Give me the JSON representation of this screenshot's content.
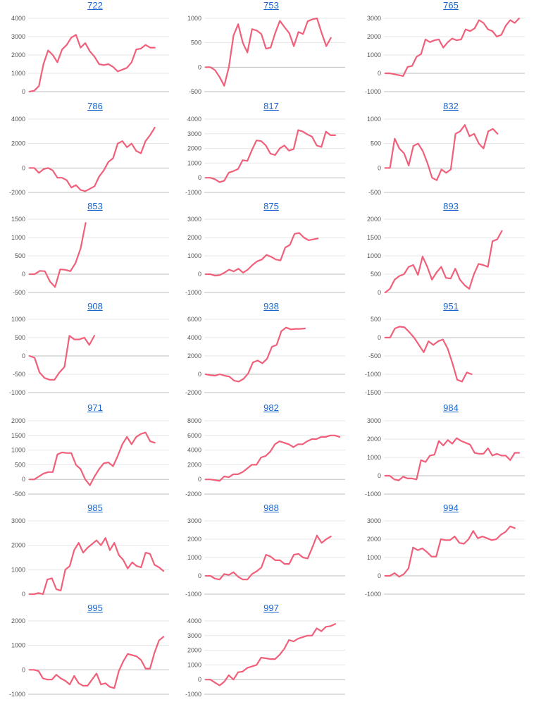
{
  "style": {
    "line_color": "#f0607a",
    "grid_color": "#e6e6e6",
    "zero_color": "#bdbdbd",
    "title_color": "#1a66cc",
    "tick_color": "#555555"
  },
  "chart_data": [
    {
      "type": "line",
      "title": "722",
      "ylim": [
        0,
        4000
      ],
      "yticks": [
        0,
        1000,
        2000,
        3000,
        4000
      ],
      "series": [
        {
          "values": [
            0,
            50,
            300,
            1500,
            2250,
            2000,
            1600,
            2300,
            2550,
            2950,
            3100,
            2400,
            2650,
            2200,
            1900,
            1500,
            1450,
            1500,
            1350,
            1100,
            1200,
            1300,
            1600,
            2300,
            2350,
            2550,
            2400,
            2400
          ]
        }
      ]
    },
    {
      "type": "line",
      "title": "753",
      "ylim": [
        -500,
        1000
      ],
      "yticks": [
        -500,
        0,
        500,
        1000
      ],
      "series": [
        {
          "values": [
            0,
            0,
            -60,
            -200,
            -380,
            0,
            650,
            880,
            500,
            300,
            780,
            750,
            680,
            380,
            400,
            700,
            950,
            820,
            700,
            430,
            720,
            680,
            940,
            980,
            1000,
            700,
            430,
            600
          ]
        }
      ]
    },
    {
      "type": "line",
      "title": "765",
      "ylim": [
        -1000,
        3000
      ],
      "yticks": [
        -1000,
        0,
        1000,
        2000,
        3000
      ],
      "series": [
        {
          "values": [
            0,
            0,
            -50,
            -100,
            -150,
            350,
            400,
            900,
            1050,
            1850,
            1700,
            1800,
            1850,
            1400,
            1700,
            1900,
            1800,
            1850,
            2400,
            2300,
            2450,
            2900,
            2750,
            2400,
            2300,
            2000,
            2100,
            2600,
            2900,
            2750,
            3000
          ]
        }
      ]
    },
    {
      "type": "line",
      "title": "786",
      "ylim": [
        -2000,
        4000
      ],
      "yticks": [
        -2000,
        0,
        2000,
        4000
      ],
      "series": [
        {
          "values": [
            0,
            0,
            -400,
            -100,
            0,
            -200,
            -800,
            -800,
            -1000,
            -1600,
            -1400,
            -1800,
            -1900,
            -1700,
            -1500,
            -700,
            -200,
            500,
            800,
            2000,
            2200,
            1700,
            2000,
            1400,
            1200,
            2200,
            2700,
            3300
          ]
        }
      ]
    },
    {
      "type": "line",
      "title": "817",
      "ylim": [
        -1000,
        4000
      ],
      "yticks": [
        -1000,
        0,
        1000,
        2000,
        3000,
        4000
      ],
      "series": [
        {
          "values": [
            0,
            0,
            -100,
            -300,
            -200,
            350,
            450,
            600,
            1200,
            1150,
            1900,
            2550,
            2500,
            2200,
            1650,
            1550,
            2000,
            2200,
            1850,
            1950,
            3250,
            3150,
            2950,
            2800,
            2200,
            2100,
            3150,
            2900,
            2900
          ]
        }
      ]
    },
    {
      "type": "line",
      "title": "832",
      "ylim": [
        -500,
        1000
      ],
      "yticks": [
        -500,
        0,
        500,
        1000
      ],
      "series": [
        {
          "values": [
            0,
            0,
            600,
            400,
            300,
            50,
            450,
            500,
            350,
            100,
            -200,
            -250,
            -30,
            -100,
            -30,
            700,
            750,
            880,
            650,
            700,
            500,
            400,
            750,
            800,
            700
          ]
        }
      ]
    },
    {
      "type": "line",
      "title": "853",
      "ylim": [
        -500,
        1500
      ],
      "yticks": [
        -500,
        0,
        500,
        1000,
        1500
      ],
      "series": [
        {
          "values": [
            0,
            0,
            90,
            80,
            -200,
            -350,
            130,
            120,
            80,
            300,
            700,
            1400
          ]
        }
      ]
    },
    {
      "type": "line",
      "title": "875",
      "ylim": [
        -1000,
        3000
      ],
      "yticks": [
        -1000,
        0,
        1000,
        2000,
        3000
      ],
      "series": [
        {
          "values": [
            0,
            0,
            -80,
            -50,
            80,
            250,
            150,
            300,
            80,
            250,
            500,
            700,
            800,
            1050,
            950,
            800,
            750,
            1450,
            1600,
            2200,
            2250,
            2000,
            1850,
            1900,
            1950
          ]
        }
      ]
    },
    {
      "type": "line",
      "title": "893",
      "ylim": [
        0,
        2000
      ],
      "yticks": [
        0,
        500,
        1000,
        1500,
        2000
      ],
      "series": [
        {
          "values": [
            0,
            100,
            350,
            450,
            500,
            700,
            750,
            480,
            980,
            700,
            350,
            550,
            700,
            400,
            380,
            650,
            350,
            200,
            100,
            500,
            780,
            750,
            700,
            1400,
            1450,
            1680
          ]
        }
      ]
    },
    {
      "type": "line",
      "title": "908",
      "ylim": [
        -1000,
        1000
      ],
      "yticks": [
        -1000,
        -500,
        0,
        500,
        1000
      ],
      "series": [
        {
          "values": [
            0,
            -50,
            -450,
            -600,
            -650,
            -650,
            -450,
            -300,
            550,
            450,
            450,
            500,
            300,
            550
          ]
        }
      ]
    },
    {
      "type": "line",
      "title": "938",
      "ylim": [
        -2000,
        6000
      ],
      "yticks": [
        -2000,
        0,
        2000,
        4000,
        6000
      ],
      "series": [
        {
          "values": [
            0,
            -100,
            -150,
            0,
            -150,
            -250,
            -700,
            -800,
            -500,
            100,
            1300,
            1500,
            1200,
            1700,
            3000,
            3200,
            4700,
            5100,
            4900,
            4950,
            4950,
            5000
          ]
        }
      ]
    },
    {
      "type": "line",
      "title": "951",
      "ylim": [
        -1500,
        500
      ],
      "yticks": [
        -1500,
        -1000,
        -500,
        0,
        500
      ],
      "series": [
        {
          "values": [
            0,
            0,
            250,
            300,
            280,
            150,
            0,
            -200,
            -400,
            -100,
            -200,
            -100,
            -50,
            -300,
            -700,
            -1150,
            -1200,
            -950,
            -1000
          ]
        }
      ]
    },
    {
      "type": "line",
      "title": "971",
      "ylim": [
        -500,
        2000
      ],
      "yticks": [
        -500,
        0,
        500,
        1000,
        1500,
        2000
      ],
      "series": [
        {
          "values": [
            0,
            0,
            100,
            200,
            250,
            250,
            850,
            920,
            900,
            900,
            500,
            350,
            0,
            -200,
            100,
            350,
            550,
            580,
            450,
            800,
            1200,
            1450,
            1200,
            1450,
            1550,
            1600,
            1300,
            1250
          ]
        }
      ]
    },
    {
      "type": "line",
      "title": "982",
      "ylim": [
        -2000,
        8000
      ],
      "yticks": [
        -2000,
        0,
        2000,
        4000,
        6000,
        8000
      ],
      "series": [
        {
          "values": [
            0,
            0,
            -100,
            -200,
            400,
            300,
            700,
            700,
            1000,
            1500,
            2000,
            2000,
            3000,
            3200,
            3800,
            4800,
            5200,
            5000,
            4800,
            4400,
            4800,
            4800,
            5200,
            5500,
            5500,
            5800,
            5800,
            6000,
            6000,
            5800
          ]
        }
      ]
    },
    {
      "type": "line",
      "title": "984",
      "ylim": [
        -1000,
        3000
      ],
      "yticks": [
        -1000,
        0,
        1000,
        2000,
        3000
      ],
      "series": [
        {
          "values": [
            0,
            0,
            -200,
            -250,
            -50,
            -150,
            -150,
            -200,
            850,
            750,
            1100,
            1150,
            1900,
            1650,
            1950,
            1750,
            2050,
            1900,
            1800,
            1700,
            1250,
            1200,
            1200,
            1500,
            1100,
            1200,
            1100,
            1100,
            850,
            1250,
            1250
          ]
        }
      ]
    },
    {
      "type": "line",
      "title": "985",
      "ylim": [
        0,
        3000
      ],
      "yticks": [
        0,
        1000,
        2000,
        3000
      ],
      "series": [
        {
          "values": [
            0,
            0,
            50,
            0,
            600,
            650,
            200,
            150,
            1000,
            1150,
            1800,
            2100,
            1700,
            1900,
            2050,
            2200,
            2000,
            2300,
            1800,
            2100,
            1600,
            1400,
            1050,
            1300,
            1150,
            1100,
            1700,
            1650,
            1200,
            1100,
            950
          ]
        }
      ]
    },
    {
      "type": "line",
      "title": "988",
      "ylim": [
        -1000,
        3000
      ],
      "yticks": [
        -1000,
        0,
        1000,
        2000,
        3000
      ],
      "series": [
        {
          "values": [
            0,
            0,
            -150,
            -200,
            100,
            50,
            200,
            -50,
            -200,
            -200,
            100,
            250,
            450,
            1150,
            1050,
            850,
            850,
            650,
            650,
            1150,
            1200,
            1000,
            950,
            1550,
            2200,
            1800,
            2000,
            2150
          ]
        }
      ]
    },
    {
      "type": "line",
      "title": "994",
      "ylim": [
        -1000,
        3000
      ],
      "yticks": [
        -1000,
        0,
        1000,
        2000,
        3000
      ],
      "series": [
        {
          "values": [
            0,
            0,
            150,
            -50,
            100,
            400,
            1550,
            1400,
            1500,
            1300,
            1050,
            1050,
            2000,
            1950,
            1950,
            2150,
            1800,
            1750,
            2000,
            2450,
            2050,
            2150,
            2050,
            1950,
            2000,
            2250,
            2400,
            2700,
            2600
          ]
        }
      ]
    },
    {
      "type": "line",
      "title": "995",
      "ylim": [
        -1000,
        2000
      ],
      "yticks": [
        -1000,
        0,
        1000,
        2000
      ],
      "series": [
        {
          "values": [
            0,
            0,
            -50,
            -350,
            -400,
            -400,
            -200,
            -350,
            -450,
            -600,
            -250,
            -550,
            -650,
            -650,
            -400,
            -150,
            -600,
            -550,
            -700,
            -750,
            -50,
            350,
            650,
            600,
            550,
            400,
            50,
            50,
            700,
            1200,
            1350
          ]
        }
      ]
    },
    {
      "type": "line",
      "title": "997",
      "ylim": [
        -1000,
        4000
      ],
      "yticks": [
        -1000,
        0,
        1000,
        2000,
        3000,
        4000
      ],
      "series": [
        {
          "values": [
            0,
            0,
            -200,
            -400,
            -150,
            300,
            0,
            500,
            550,
            800,
            900,
            1000,
            1500,
            1450,
            1400,
            1400,
            1700,
            2100,
            2700,
            2600,
            2800,
            2900,
            3000,
            3000,
            3500,
            3300,
            3600,
            3650,
            3800
          ]
        }
      ]
    }
  ]
}
